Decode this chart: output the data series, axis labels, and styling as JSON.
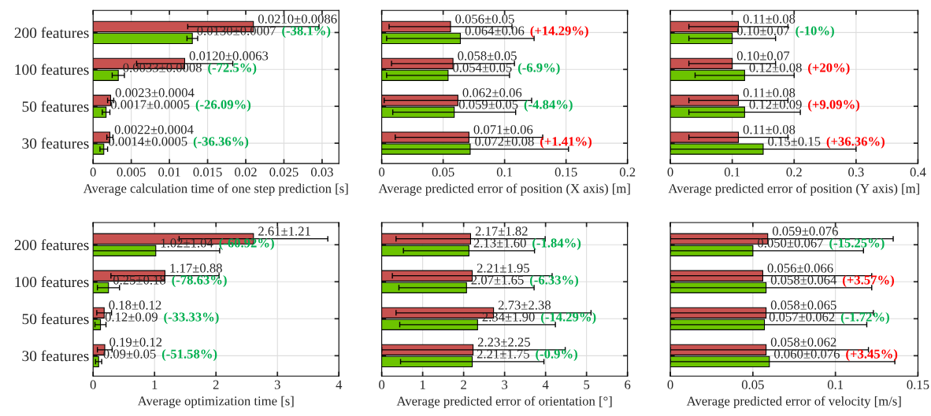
{
  "chart_data": [
    {
      "type": "bar",
      "orientation": "horizontal",
      "categories": [
        "200 features",
        "100 features",
        "50 features",
        "30 features"
      ],
      "xlabel": "Average calculation time of one step prediction [s]",
      "xlim": [
        0,
        0.0322
      ],
      "xticks": [
        0,
        0.005,
        0.01,
        0.015,
        0.02,
        0.025,
        0.03
      ],
      "grid": true,
      "series": [
        {
          "color": "#c85250",
          "values": [
            0.021,
            0.012,
            0.0023,
            0.0022
          ],
          "errors": [
            0.0086,
            0.0063,
            0.0004,
            0.0004
          ],
          "value_labels": [
            "0.0210±0.0086",
            "0.0120±0.0063",
            "0.0023±0.0004",
            "0.0022±0.0004"
          ]
        },
        {
          "color": "#6cc400",
          "values": [
            0.013,
            0.0033,
            0.0017,
            0.0014
          ],
          "errors": [
            0.0007,
            0.0008,
            0.0005,
            0.0005
          ],
          "value_labels": [
            "0.0130±0.0007",
            "0.0033±0.0008",
            "0.0017±0.0005",
            "0.0014±0.0005"
          ]
        }
      ],
      "annotations": [
        "(-38.1%)",
        "(-72.5%)",
        "(-26.09%)",
        "(-36.36%)"
      ]
    },
    {
      "type": "bar",
      "orientation": "horizontal",
      "categories": [
        null,
        null,
        null,
        null
      ],
      "xlabel": "Average predicted error of position (X axis) [m]",
      "xlim": [
        0,
        0.2
      ],
      "xticks": [
        0,
        0.05,
        0.1,
        0.15,
        0.2
      ],
      "grid": true,
      "series": [
        {
          "color": "#c85250",
          "values": [
            0.056,
            0.058,
            0.062,
            0.071
          ],
          "errors": [
            0.05,
            0.05,
            0.06,
            0.06
          ],
          "value_labels": [
            "0.056±0.05",
            "0.058±0.05",
            "0.062±0.06",
            "0.071±0.06"
          ]
        },
        {
          "color": "#6cc400",
          "values": [
            0.064,
            0.054,
            0.059,
            0.072
          ],
          "errors": [
            0.06,
            0.05,
            0.05,
            0.08
          ],
          "value_labels": [
            "0.064±0.06",
            "0.054±0.05",
            "0.059±0.05",
            "0.072±0.08"
          ]
        }
      ],
      "annotations": [
        "(+14.29%)",
        "(-6.9%)",
        "(-4.84%)",
        "(+1.41%)"
      ]
    },
    {
      "type": "bar",
      "orientation": "horizontal",
      "categories": [
        null,
        null,
        null,
        null
      ],
      "xlabel": "Average predicted error of position (Y axis) [m]",
      "xlim": [
        0,
        0.4
      ],
      "xticks": [
        0,
        0.1,
        0.2,
        0.3,
        0.4
      ],
      "grid": true,
      "series": [
        {
          "color": "#c85250",
          "values": [
            0.11,
            0.1,
            0.11,
            0.11
          ],
          "errors": [
            0.08,
            0.07,
            0.08,
            0.08
          ],
          "value_labels": [
            "0.11±0.08",
            "0.10±0.07",
            "0.11±0.08",
            "0.11±0.08"
          ]
        },
        {
          "color": "#6cc400",
          "values": [
            0.1,
            0.12,
            0.12,
            0.15
          ],
          "errors": [
            0.07,
            0.08,
            0.09,
            0.15
          ],
          "value_labels": [
            "0.10±0.07",
            "0.12±0.08",
            "0.12±0.09",
            "0.15±0.15"
          ]
        }
      ],
      "annotations": [
        "(-10%)",
        "(+20%)",
        "(+9.09%)",
        "(+36.36%)"
      ]
    },
    {
      "type": "bar",
      "orientation": "horizontal",
      "categories": [
        "200 features",
        "100 features",
        "50 features",
        "30 features"
      ],
      "xlabel": "Average optimization time [s]",
      "xlim": [
        0,
        4
      ],
      "xticks": [
        0,
        1,
        2,
        3,
        4
      ],
      "grid": true,
      "series": [
        {
          "color": "#c85250",
          "values": [
            2.61,
            1.17,
            0.18,
            0.19
          ],
          "errors": [
            1.21,
            0.88,
            0.12,
            0.12
          ],
          "value_labels": [
            "2.61±1.21",
            "1.17±0.88",
            "0.18±0.12",
            "0.19±0.12"
          ]
        },
        {
          "color": "#6cc400",
          "values": [
            1.02,
            0.25,
            0.12,
            0.09
          ],
          "errors": [
            1.04,
            0.18,
            0.09,
            0.05
          ],
          "value_labels": [
            "1.02±1.04",
            "0.25±0.18",
            "0.12±0.09",
            "0.09±0.05"
          ]
        }
      ],
      "annotations": [
        "(-60.92%)",
        "(-78.63%)",
        "(-33.33%)",
        "(-51.58%)"
      ]
    },
    {
      "type": "bar",
      "orientation": "horizontal",
      "categories": [
        null,
        null,
        null,
        null
      ],
      "xlabel": "Average predicted error of orientation [°]",
      "xlim": [
        0,
        6
      ],
      "xticks": [
        0,
        1,
        2,
        3,
        4,
        5,
        6
      ],
      "grid": true,
      "series": [
        {
          "color": "#c85250",
          "values": [
            2.17,
            2.21,
            2.73,
            2.23
          ],
          "errors": [
            1.82,
            1.95,
            2.38,
            [
              0,
              4.48
            ]
          ],
          "value_labels": [
            "2.17±1.82",
            "2.21±1.95",
            "2.73±2.38",
            "2.23±2.25"
          ]
        },
        {
          "color": "#6cc400",
          "values": [
            2.13,
            2.07,
            2.34,
            2.21
          ],
          "errors": [
            1.6,
            1.65,
            1.9,
            1.75
          ],
          "value_labels": [
            "2.13±1.60",
            "2.07±1.65",
            "2.34±1.90",
            "2.21±1.75"
          ]
        }
      ],
      "annotations": [
        "(-1.84%)",
        "(-6.33%)",
        "(-14.29%)",
        "(-0.9%)"
      ]
    },
    {
      "type": "bar",
      "orientation": "horizontal",
      "categories": [
        null,
        null,
        null,
        null
      ],
      "xlabel": "Average predicted error of velocity [m/s]",
      "xlim": [
        0,
        0.15
      ],
      "xticks": [
        0,
        0.05,
        0.1,
        0.15
      ],
      "grid": true,
      "series": [
        {
          "color": "#c85250",
          "values": [
            0.059,
            0.056,
            0.058,
            0.058
          ],
          "errors": [
            [
              0,
              0.135
            ],
            [
              0,
              0.122
            ],
            [
              0,
              0.123
            ],
            [
              0,
              0.12
            ]
          ],
          "value_labels": [
            "0.059±0.076",
            "0.056±0.066",
            "0.058±0.065",
            "0.058±0.062"
          ]
        },
        {
          "color": "#6cc400",
          "values": [
            0.05,
            0.058,
            0.057,
            0.06
          ],
          "errors": [
            [
              0,
              0.117
            ],
            [
              0,
              0.122
            ],
            [
              0,
              0.119
            ],
            [
              0,
              0.136
            ]
          ],
          "value_labels": [
            "0.050±0.067",
            "0.058±0.064",
            "0.057±0.062",
            "0.060±0.076"
          ]
        }
      ],
      "annotations": [
        "(-15.25%)",
        "(+3.57%)",
        "(-1.72%)",
        "(+3.45%)"
      ]
    }
  ]
}
